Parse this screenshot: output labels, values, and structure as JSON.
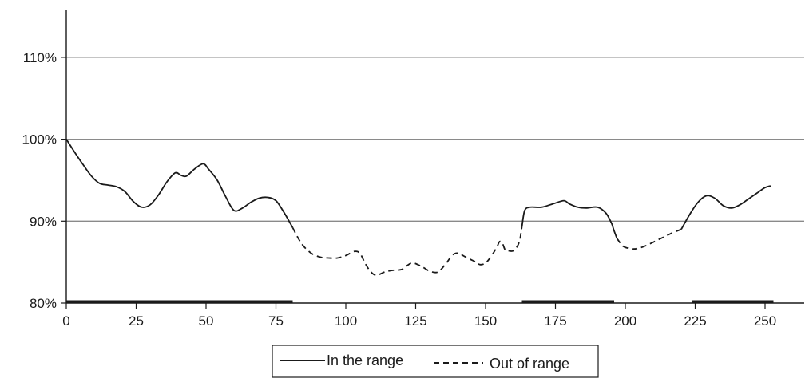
{
  "chart_data": {
    "type": "line",
    "title": "",
    "xlabel": "",
    "ylabel": "",
    "xlim": [
      0,
      262
    ],
    "ylim": [
      80,
      116
    ],
    "xticks": [
      0,
      25,
      50,
      75,
      100,
      125,
      150,
      175,
      200,
      225,
      250
    ],
    "xtick_labels": [
      "0",
      "25",
      "50",
      "75",
      "100",
      "125",
      "150",
      "175",
      "200",
      "225",
      "250"
    ],
    "yticks": [
      80,
      90,
      100,
      110
    ],
    "ytick_labels": [
      "80%",
      "90%",
      "100%",
      "110%"
    ],
    "grid": "horizontal",
    "legend_position": "bottom-center",
    "series": [
      {
        "name": "In the range",
        "style": "solid",
        "x": [
          0,
          3,
          6,
          9,
          12,
          15,
          18,
          21,
          24,
          27,
          30,
          33,
          36,
          39,
          41,
          43,
          46,
          49,
          51,
          54,
          57,
          60,
          63,
          66,
          69,
          72,
          75,
          78,
          81,
          null,
          163,
          164,
          166,
          170,
          174,
          178,
          180,
          183,
          186,
          190,
          193,
          195,
          196,
          197,
          null,
          220,
          223,
          226,
          229,
          232,
          235,
          238,
          241,
          244,
          247,
          250,
          252
        ],
        "y": [
          100,
          98.4,
          96.9,
          95.5,
          94.6,
          94.4,
          94.2,
          93.6,
          92.4,
          91.7,
          92.0,
          93.2,
          94.8,
          95.9,
          95.6,
          95.5,
          96.4,
          97.0,
          96.3,
          95.0,
          93.0,
          91.3,
          91.6,
          92.3,
          92.8,
          92.9,
          92.5,
          91.0,
          89.2,
          null,
          89.3,
          91.3,
          91.7,
          91.7,
          92.1,
          92.5,
          92.1,
          91.7,
          91.6,
          91.7,
          91.0,
          89.8,
          88.8,
          87.9,
          null,
          89.0,
          90.8,
          92.3,
          93.1,
          92.8,
          91.9,
          91.6,
          92.0,
          92.7,
          93.4,
          94.1,
          94.3
        ]
      },
      {
        "name": "Out of range",
        "style": "dashed",
        "x": [
          81,
          83,
          85,
          88,
          91,
          94,
          97,
          100,
          103,
          105,
          107,
          109,
          111,
          114,
          117,
          120,
          122,
          124,
          127,
          130,
          133,
          136,
          138,
          140,
          143,
          146,
          148,
          150,
          152,
          154,
          155,
          156,
          157,
          158,
          160,
          162,
          163
        ],
        "y": [
          89.2,
          87.9,
          86.9,
          86.0,
          85.6,
          85.5,
          85.5,
          85.8,
          86.3,
          86.1,
          84.8,
          83.8,
          83.4,
          83.8,
          84.0,
          84.1,
          84.6,
          84.9,
          84.5,
          83.9,
          83.8,
          84.9,
          85.8,
          86.1,
          85.6,
          85.1,
          84.7,
          84.9,
          85.7,
          86.8,
          87.5,
          87.3,
          86.5,
          86.4,
          86.4,
          87.4,
          89.3
        ]
      },
      {
        "name": "Out of range",
        "style": "dashed",
        "x": [
          197,
          199,
          201,
          203,
          205,
          208,
          211,
          214,
          217,
          220
        ],
        "y": [
          87.9,
          87.0,
          86.7,
          86.6,
          86.7,
          87.1,
          87.6,
          88.1,
          88.6,
          89.0
        ]
      }
    ],
    "range_bars": [
      {
        "start": 0,
        "end": 81,
        "y": 80.2
      },
      {
        "start": 163,
        "end": 196,
        "y": 80.2
      },
      {
        "start": 224,
        "end": 253,
        "y": 80.2
      }
    ],
    "legend": [
      {
        "label": "In the range",
        "style": "solid"
      },
      {
        "label": "Out of range",
        "style": "dashed"
      }
    ]
  }
}
